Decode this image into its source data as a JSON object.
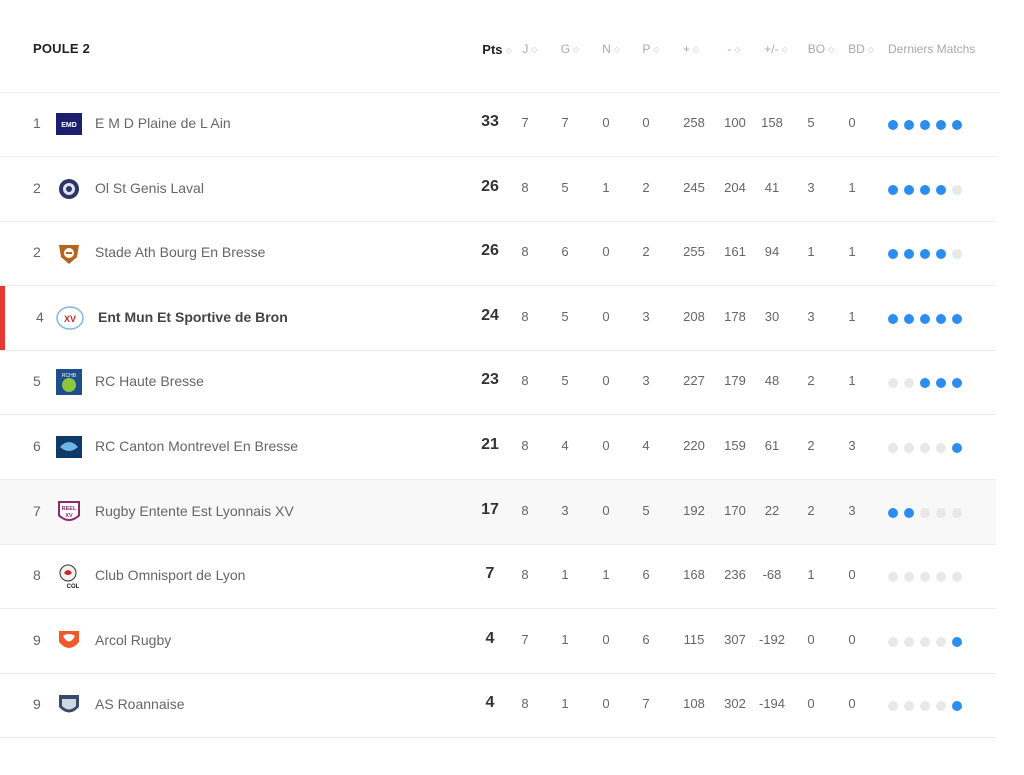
{
  "title": "POULE 2",
  "columns": [
    {
      "key": "pts",
      "label": "Pts"
    },
    {
      "key": "j",
      "label": "J"
    },
    {
      "key": "g",
      "label": "G"
    },
    {
      "key": "n",
      "label": "N"
    },
    {
      "key": "p",
      "label": "P"
    },
    {
      "key": "plus",
      "label": "+"
    },
    {
      "key": "minus",
      "label": "-"
    },
    {
      "key": "diff",
      "label": "+/-"
    },
    {
      "key": "bo",
      "label": "BO"
    },
    {
      "key": "bd",
      "label": "BD"
    },
    {
      "key": "last",
      "label": "Derniers Matchs"
    }
  ],
  "colors": {
    "win": "#2b8def",
    "empty": "#e8e8e8",
    "current_marker": "#e53935"
  },
  "rows": [
    {
      "rank": "1",
      "team": "E M D Plaine de L Ain",
      "logo_icon": "emd-logo-icon",
      "logo_text": "EMD",
      "pts": "33",
      "j": "7",
      "g": "7",
      "n": "0",
      "p": "0",
      "plus": "258",
      "minus": "100",
      "diff": "158",
      "bo": "5",
      "bd": "0",
      "form": [
        1,
        1,
        1,
        1,
        1
      ]
    },
    {
      "rank": "2",
      "team": "Ol St Genis Laval",
      "logo_icon": "osgl-logo-icon",
      "logo_text": "",
      "pts": "26",
      "j": "8",
      "g": "5",
      "n": "1",
      "p": "2",
      "plus": "245",
      "minus": "204",
      "diff": "41",
      "bo": "3",
      "bd": "1",
      "form": [
        1,
        1,
        1,
        1,
        0
      ]
    },
    {
      "rank": "2",
      "team": "Stade Ath Bourg En Bresse",
      "logo_icon": "sabb-logo-icon",
      "logo_text": "",
      "pts": "26",
      "j": "8",
      "g": "6",
      "n": "0",
      "p": "2",
      "plus": "255",
      "minus": "161",
      "diff": "94",
      "bo": "1",
      "bd": "1",
      "form": [
        1,
        1,
        1,
        1,
        0
      ]
    },
    {
      "rank": "4",
      "team": "Ent Mun Et Sportive de Bron",
      "logo_icon": "emsb-logo-icon",
      "logo_text": "XV",
      "pts": "24",
      "j": "8",
      "g": "5",
      "n": "0",
      "p": "3",
      "plus": "208",
      "minus": "178",
      "diff": "30",
      "bo": "3",
      "bd": "1",
      "form": [
        1,
        1,
        1,
        1,
        1
      ],
      "current": true
    },
    {
      "rank": "5",
      "team": "RC Haute Bresse",
      "logo_icon": "rchb-logo-icon",
      "logo_text": "RCHB",
      "pts": "23",
      "j": "8",
      "g": "5",
      "n": "0",
      "p": "3",
      "plus": "227",
      "minus": "179",
      "diff": "48",
      "bo": "2",
      "bd": "1",
      "form": [
        0,
        0,
        1,
        1,
        1
      ]
    },
    {
      "rank": "6",
      "team": "RC Canton Montrevel En Bresse",
      "logo_icon": "rccm-logo-icon",
      "logo_text": "",
      "pts": "21",
      "j": "8",
      "g": "4",
      "n": "0",
      "p": "4",
      "plus": "220",
      "minus": "159",
      "diff": "61",
      "bo": "2",
      "bd": "3",
      "form": [
        0,
        0,
        0,
        0,
        1
      ]
    },
    {
      "rank": "7",
      "team": "Rugby Entente Est Lyonnais XV",
      "logo_icon": "reel-logo-icon",
      "logo_text": "REEL",
      "pts": "17",
      "j": "8",
      "g": "3",
      "n": "0",
      "p": "5",
      "plus": "192",
      "minus": "170",
      "diff": "22",
      "bo": "2",
      "bd": "3",
      "form": [
        1,
        1,
        0,
        0,
        0
      ],
      "highlight": true
    },
    {
      "rank": "8",
      "team": "Club Omnisport de Lyon",
      "logo_icon": "col-logo-icon",
      "logo_text": "COL",
      "pts": "7",
      "j": "8",
      "g": "1",
      "n": "1",
      "p": "6",
      "plus": "168",
      "minus": "236",
      "diff": "-68",
      "bo": "1",
      "bd": "0",
      "form": [
        0,
        0,
        0,
        0,
        0
      ]
    },
    {
      "rank": "9",
      "team": "Arcol Rugby",
      "logo_icon": "arcol-logo-icon",
      "logo_text": "",
      "pts": "4",
      "j": "7",
      "g": "1",
      "n": "0",
      "p": "6",
      "plus": "115",
      "minus": "307",
      "diff": "-192",
      "bo": "0",
      "bd": "0",
      "form": [
        0,
        0,
        0,
        0,
        1
      ]
    },
    {
      "rank": "9",
      "team": "AS Roannaise",
      "logo_icon": "asr-logo-icon",
      "logo_text": "",
      "pts": "4",
      "j": "8",
      "g": "1",
      "n": "0",
      "p": "7",
      "plus": "108",
      "minus": "302",
      "diff": "-194",
      "bo": "0",
      "bd": "0",
      "form": [
        0,
        0,
        0,
        0,
        1
      ]
    }
  ]
}
